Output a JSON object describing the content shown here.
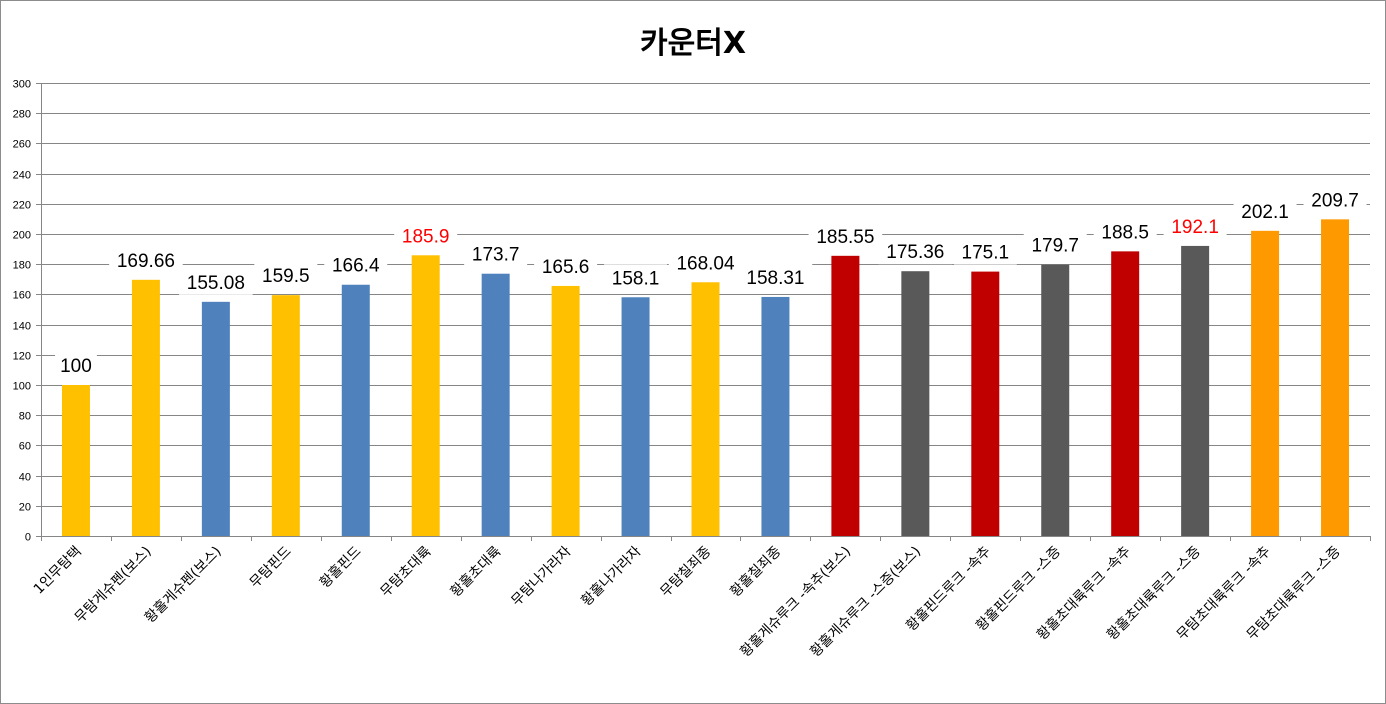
{
  "chart_data": {
    "type": "bar",
    "title": "카운터X",
    "xlabel": "",
    "ylabel": "",
    "ylim": [
      0,
      300
    ],
    "ytick_step": 20,
    "grid": true,
    "legend": "none",
    "categories": [
      "1인무탐택",
      "무탐게슈펜(보스)",
      "황홀게슈펜(보스)",
      "무탐핀드",
      "황홀핀드",
      "무탐초대륙",
      "황홀초대륙",
      "무탐나가라자",
      "황홀나가라자",
      "무탐칠죄종",
      "황홀칠죄종",
      "황홀게슈루크 -속추(보스)",
      "황홀게슈루크 -스증(보스)",
      "황홀핀드루크 -속추",
      "황홀핀드루크 -스증",
      "황홀초대륙루크 -속추",
      "황홀초대륙루크 -스증",
      "무탐초대륙루크 -속추",
      "무탐초대륙루크 -스증"
    ],
    "values": [
      100,
      169.66,
      155.08,
      159.5,
      166.4,
      185.9,
      173.7,
      165.6,
      158.1,
      168.04,
      158.31,
      185.55,
      175.36,
      175.1,
      179.7,
      188.5,
      192.1,
      202.1,
      209.7
    ],
    "value_labels": [
      "100",
      "169.66",
      "155.08",
      "159.5",
      "166.4",
      "185.9",
      "173.7",
      "165.6",
      "158.1",
      "168.04",
      "158.31",
      "185.55",
      "175.36",
      "175.1",
      "179.7",
      "188.5",
      "192.1",
      "202.1",
      "209.7"
    ],
    "bar_colors": [
      "#ffc000",
      "#ffc000",
      "#4f81bd",
      "#ffc000",
      "#4f81bd",
      "#ffc000",
      "#4f81bd",
      "#ffc000",
      "#4f81bd",
      "#ffc000",
      "#4f81bd",
      "#c00000",
      "#595959",
      "#c00000",
      "#595959",
      "#c00000",
      "#595959",
      "#ff9900",
      "#ff9900"
    ],
    "label_colors": [
      "#000000",
      "#000000",
      "#000000",
      "#000000",
      "#000000",
      "#ff0000",
      "#000000",
      "#000000",
      "#000000",
      "#000000",
      "#000000",
      "#000000",
      "#000000",
      "#000000",
      "#000000",
      "#000000",
      "#ff0000",
      "#000000",
      "#000000"
    ],
    "gridline_color": "#868686",
    "axis_color": "#868686"
  }
}
